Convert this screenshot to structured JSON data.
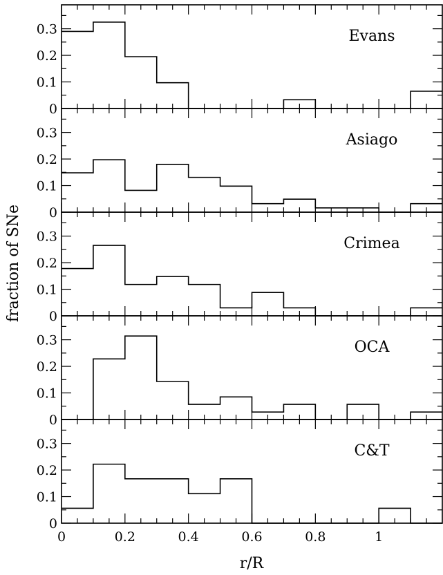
{
  "chart_data": {
    "type": "bar",
    "subtype": "stacked-histogram-panels",
    "xlabel": "r/R",
    "ylabel": "fraction of SNe",
    "xlim": [
      0,
      1.2
    ],
    "ylim": [
      0,
      0.39
    ],
    "bin_width": 0.1,
    "x_ticks": [
      0,
      0.2,
      0.4,
      0.6,
      0.8,
      1
    ],
    "x_tick_labels": [
      "0",
      "0.2",
      "0.4",
      "0.6",
      "0.8",
      "1"
    ],
    "y_ticks": [
      0,
      0.1,
      0.2,
      0.3
    ],
    "y_tick_labels": [
      "0",
      "0.1",
      "0.2",
      "0.3"
    ],
    "bin_edges": [
      0,
      0.1,
      0.2,
      0.3,
      0.4,
      0.5,
      0.6,
      0.7,
      0.8,
      0.9,
      1.0,
      1.1,
      1.2
    ],
    "grid": false,
    "panels": [
      {
        "name": "Evans",
        "values": [
          0.29,
          0.325,
          0.195,
          0.097,
          0,
          0,
          0,
          0.033,
          0,
          0,
          0,
          0.065
        ]
      },
      {
        "name": "Asiago",
        "values": [
          0.148,
          0.197,
          0.082,
          0.18,
          0.131,
          0.098,
          0.032,
          0.049,
          0.016,
          0.016,
          0,
          0.032
        ]
      },
      {
        "name": "Crimea",
        "values": [
          0.178,
          0.265,
          0.118,
          0.148,
          0.118,
          0.03,
          0.088,
          0.03,
          0,
          0,
          0,
          0.03
        ]
      },
      {
        "name": "OCA",
        "values": [
          0,
          0.228,
          0.314,
          0.143,
          0.057,
          0.085,
          0.028,
          0.057,
          0,
          0.057,
          0,
          0.028
        ]
      },
      {
        "name": "C&T",
        "values": [
          0.056,
          0.222,
          0.167,
          0.167,
          0.111,
          0.167,
          0,
          0,
          0,
          0,
          0.056,
          0
        ]
      }
    ]
  }
}
